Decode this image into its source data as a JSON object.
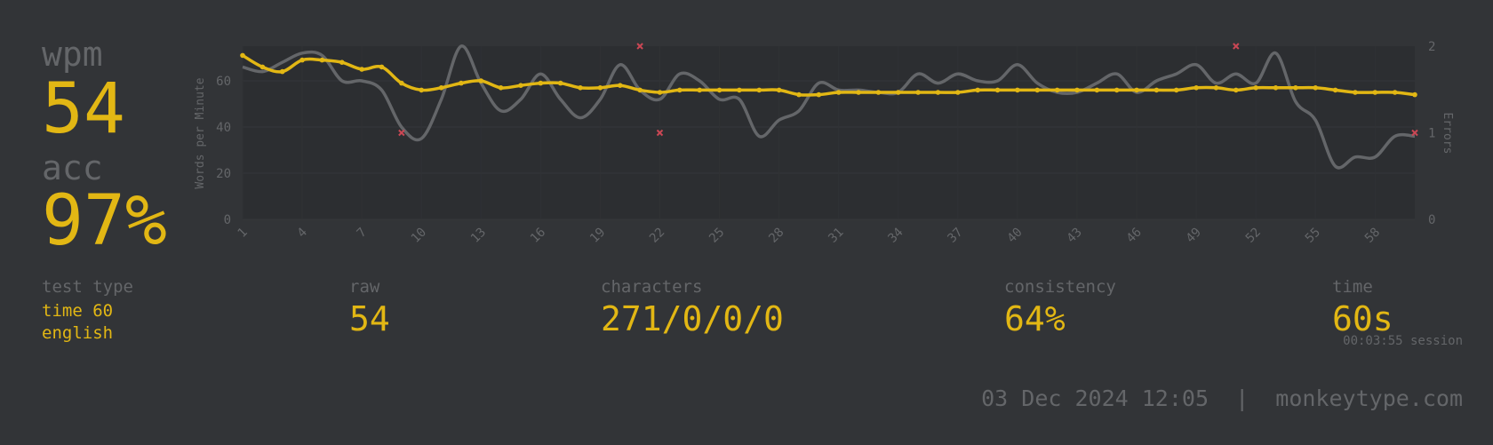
{
  "summary": {
    "wpm_label": "wpm",
    "wpm_value": "54",
    "acc_label": "acc",
    "acc_value": "97%"
  },
  "stats": {
    "test_type_label": "test type",
    "test_type_time": "time 60",
    "test_type_language": "english",
    "raw_label": "raw",
    "raw_value": "54",
    "characters_label": "characters",
    "characters_value": "271/0/0/0",
    "consistency_label": "consistency",
    "consistency_value": "64%",
    "time_label": "time",
    "time_value": "60s",
    "session_text": "00:03:55 session"
  },
  "footer": {
    "date": "03 Dec 2024 12:05",
    "separator": "|",
    "site": "monkeytype.com"
  },
  "colors": {
    "background": "#323437",
    "main": "#e2b714",
    "sub": "#646669",
    "raw_line": "#646669",
    "error": "#ca4754",
    "plot_bg": "#2c2e31"
  },
  "chart_data": {
    "type": "line",
    "ylabel": "Words per Minute",
    "y2label": "Errors",
    "ylim": [
      0,
      75
    ],
    "yticks": [
      0,
      20,
      40,
      60
    ],
    "y2lim": [
      0,
      2
    ],
    "y2ticks": [
      0,
      1,
      2
    ],
    "x": [
      1,
      2,
      3,
      4,
      5,
      6,
      7,
      8,
      9,
      10,
      11,
      12,
      13,
      14,
      15,
      16,
      17,
      18,
      19,
      20,
      21,
      22,
      23,
      24,
      25,
      26,
      27,
      28,
      29,
      30,
      31,
      32,
      33,
      34,
      35,
      36,
      37,
      38,
      39,
      40,
      41,
      42,
      43,
      44,
      45,
      46,
      47,
      48,
      49,
      50,
      51,
      52,
      53,
      54,
      55,
      56,
      57,
      58,
      59,
      60
    ],
    "xticks": [
      1,
      4,
      7,
      10,
      13,
      16,
      19,
      22,
      25,
      28,
      31,
      34,
      37,
      40,
      43,
      46,
      49,
      52,
      55,
      58
    ],
    "series": [
      {
        "role": "wpm",
        "values": [
          71,
          66,
          64,
          69,
          69,
          68,
          65,
          66,
          59,
          56,
          57,
          59,
          60,
          57,
          58,
          59,
          59,
          57,
          57,
          58,
          56,
          55,
          56,
          56,
          56,
          56,
          56,
          56,
          54,
          54,
          55,
          55,
          55,
          55,
          55,
          55,
          55,
          56,
          56,
          56,
          56,
          56,
          56,
          56,
          56,
          56,
          56,
          56,
          57,
          57,
          56,
          57,
          57,
          57,
          57,
          56,
          55,
          55,
          55,
          54
        ]
      },
      {
        "role": "raw",
        "values": [
          66,
          64,
          68,
          72,
          71,
          60,
          60,
          56,
          40,
          35,
          52,
          75,
          59,
          47,
          52,
          63,
          52,
          44,
          52,
          67,
          56,
          52,
          63,
          60,
          52,
          52,
          36,
          43,
          47,
          59,
          56,
          56,
          55,
          55,
          63,
          59,
          63,
          60,
          60,
          67,
          59,
          55,
          55,
          59,
          63,
          55,
          60,
          63,
          67,
          59,
          63,
          59,
          72,
          51,
          43,
          23,
          27,
          27,
          36,
          36
        ]
      }
    ],
    "errors": [
      {
        "x": 9,
        "count": 1
      },
      {
        "x": 21,
        "count": 2
      },
      {
        "x": 22,
        "count": 1
      },
      {
        "x": 51,
        "count": 2
      },
      {
        "x": 60,
        "count": 1
      }
    ]
  }
}
